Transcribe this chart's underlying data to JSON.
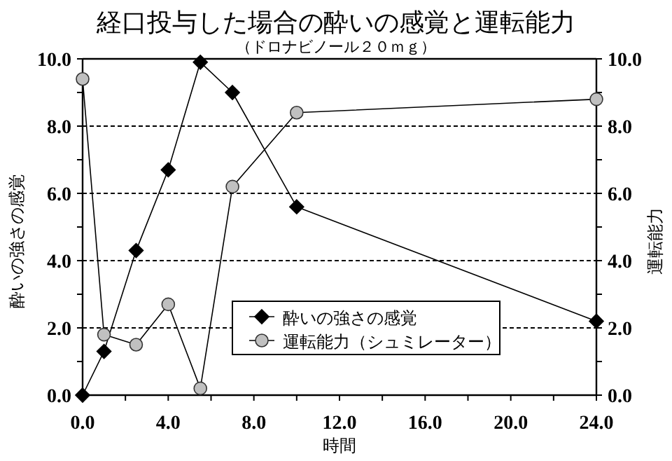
{
  "chart_data": {
    "type": "line",
    "title": "経口投与した場合の酔いの感覚と運転能力",
    "subtitle": "（ドロナビノール２０ｍｇ）",
    "xlabel": "時間",
    "ylabel": "酔いの強さの感覚",
    "y2label": "運転能力",
    "x": [
      0,
      1,
      2.5,
      4,
      5.5,
      7,
      10,
      24
    ],
    "series": [
      {
        "name": "酔いの強さの感覚",
        "color": "#000000",
        "marker": "diamond",
        "values": [
          0,
          1.3,
          4.3,
          6.7,
          9.9,
          9.0,
          5.6,
          2.2
        ]
      },
      {
        "name": "運転能力（シュミレーター）",
        "color": "#c0c0c0",
        "marker": "circle",
        "axis": "y2",
        "values": [
          9.4,
          1.8,
          1.5,
          2.7,
          0.2,
          6.2,
          8.4,
          8.8
        ]
      }
    ],
    "xlim": [
      0,
      24
    ],
    "xticks": [
      {
        "value": 0,
        "label": "0.0"
      },
      {
        "value": 2,
        "label": null
      },
      {
        "value": 4,
        "label": "4.0"
      },
      {
        "value": 6,
        "label": null
      },
      {
        "value": 8,
        "label": "8.0"
      },
      {
        "value": 10,
        "label": null
      },
      {
        "value": 12,
        "label": "12.0"
      },
      {
        "value": 14,
        "label": null
      },
      {
        "value": 16,
        "label": "16.0"
      },
      {
        "value": 18,
        "label": null
      },
      {
        "value": 20,
        "label": "20.0"
      },
      {
        "value": 22,
        "label": null
      },
      {
        "value": 24,
        "label": "24.0"
      }
    ],
    "ylim": [
      0,
      10
    ],
    "yticks": [
      {
        "value": 0,
        "label": "0.0"
      },
      {
        "value": 1,
        "label": null
      },
      {
        "value": 2,
        "label": "2.0"
      },
      {
        "value": 3,
        "label": null
      },
      {
        "value": 4,
        "label": "4.0"
      },
      {
        "value": 5,
        "label": null
      },
      {
        "value": 6,
        "label": "6.0"
      },
      {
        "value": 7,
        "label": null
      },
      {
        "value": 8,
        "label": "8.0"
      },
      {
        "value": 9,
        "label": null
      },
      {
        "value": 10,
        "label": "10.0"
      }
    ],
    "y2lim": [
      0,
      10
    ],
    "y2ticks": [
      {
        "value": 0,
        "label": "0.0"
      },
      {
        "value": 1,
        "label": null
      },
      {
        "value": 2,
        "label": "2.0"
      },
      {
        "value": 3,
        "label": null
      },
      {
        "value": 4,
        "label": "4.0"
      },
      {
        "value": 5,
        "label": null
      },
      {
        "value": 6,
        "label": "6.0"
      },
      {
        "value": 7,
        "label": null
      },
      {
        "value": 8,
        "label": "8.0"
      },
      {
        "value": 9,
        "label": null
      },
      {
        "value": 10,
        "label": "10.0"
      }
    ],
    "grid": "y",
    "legend": "bottom",
    "line_style": "solid"
  }
}
